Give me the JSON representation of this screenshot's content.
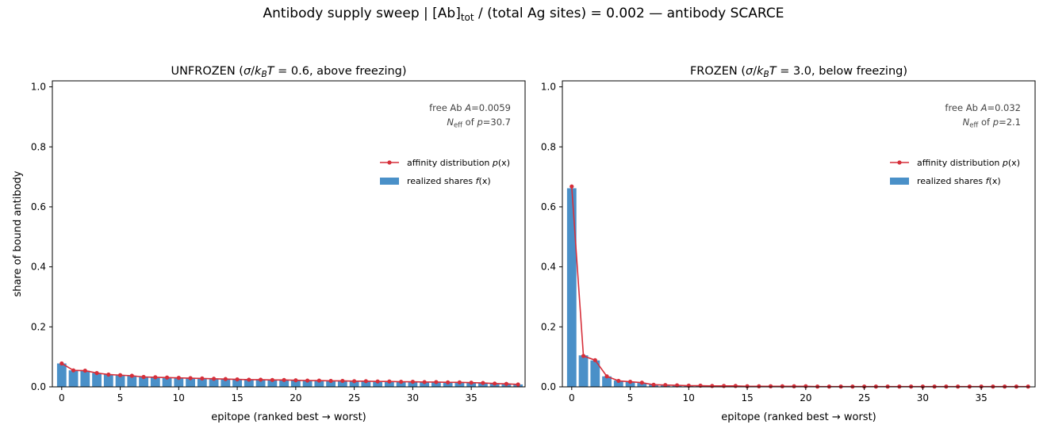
{
  "figure": {
    "suptitle_prefix": "Antibody supply sweep   |   [Ab]",
    "suptitle_sub": "tot",
    "suptitle_suffix": " / (total Ag sites) = 0.002   —   antibody SCARCE"
  },
  "colors": {
    "bar": "#4a90c8",
    "line": "#d62f3a"
  },
  "chart_data": [
    {
      "type": "bar",
      "title_prefix": "UNFROZEN  (",
      "title_math_sigma": "σ",
      "title_math_k": "k",
      "title_math_sub": "B",
      "title_math_T": "T",
      "title_suffix": " = 0.6, above freezing)",
      "xlabel": "epitope (ranked best → worst)",
      "ylabel": "share of bound antibody",
      "xlim": [
        -0.8,
        39.6
      ],
      "ylim": [
        0,
        1.02
      ],
      "xticks": [
        0,
        5,
        10,
        15,
        20,
        25,
        30,
        35
      ],
      "yticks": [
        "0.0",
        "0.2",
        "0.4",
        "0.6",
        "0.8",
        "1.0"
      ],
      "annotation_line1_prefix": "free Ab ",
      "annotation_line1_var": "A",
      "annotation_line1_value": "=0.0059",
      "annotation_line2_var": "N",
      "annotation_line2_sub": "eff",
      "annotation_line2_mid": " of ",
      "annotation_line2_pvar": "p",
      "annotation_line2_value": "=30.7",
      "legend": [
        {
          "kind": "line",
          "prefix": "affinity distribution ",
          "var": "p",
          "suffix": "(x)"
        },
        {
          "kind": "bar",
          "prefix": "realized shares ",
          "var": "f",
          "suffix": "(x)"
        }
      ],
      "series": [
        {
          "kind": "bar",
          "values": [
            0.078,
            0.055,
            0.054,
            0.046,
            0.041,
            0.038,
            0.036,
            0.033,
            0.032,
            0.031,
            0.03,
            0.029,
            0.028,
            0.027,
            0.026,
            0.025,
            0.024,
            0.024,
            0.023,
            0.023,
            0.022,
            0.021,
            0.021,
            0.02,
            0.02,
            0.019,
            0.019,
            0.018,
            0.018,
            0.017,
            0.017,
            0.016,
            0.016,
            0.015,
            0.015,
            0.014,
            0.013,
            0.011,
            0.01,
            0.008
          ]
        },
        {
          "kind": "line",
          "values": [
            0.078,
            0.055,
            0.054,
            0.046,
            0.041,
            0.039,
            0.037,
            0.033,
            0.032,
            0.031,
            0.03,
            0.029,
            0.028,
            0.027,
            0.026,
            0.025,
            0.024,
            0.024,
            0.023,
            0.023,
            0.022,
            0.021,
            0.021,
            0.02,
            0.02,
            0.019,
            0.019,
            0.018,
            0.018,
            0.017,
            0.017,
            0.016,
            0.016,
            0.015,
            0.015,
            0.014,
            0.013,
            0.011,
            0.01,
            0.008
          ]
        }
      ]
    },
    {
      "type": "bar",
      "title_prefix": "FROZEN  (",
      "title_math_sigma": "σ",
      "title_math_k": "k",
      "title_math_sub": "B",
      "title_math_T": "T",
      "title_suffix": " = 3.0, below freezing)",
      "xlabel": "epitope (ranked best → worst)",
      "ylabel": "",
      "xlim": [
        -0.8,
        39.6
      ],
      "ylim": [
        0,
        1.02
      ],
      "xticks": [
        0,
        5,
        10,
        15,
        20,
        25,
        30,
        35
      ],
      "yticks": [
        "0.0",
        "0.2",
        "0.4",
        "0.6",
        "0.8",
        "1.0"
      ],
      "annotation_line1_prefix": "free Ab ",
      "annotation_line1_var": "A",
      "annotation_line1_value": "=0.032",
      "annotation_line2_var": "N",
      "annotation_line2_sub": "eff",
      "annotation_line2_mid": " of ",
      "annotation_line2_pvar": "p",
      "annotation_line2_value": "=2.1",
      "legend": [
        {
          "kind": "line",
          "prefix": "affinity distribution ",
          "var": "p",
          "suffix": "(x)"
        },
        {
          "kind": "bar",
          "prefix": "realized shares ",
          "var": "f",
          "suffix": "(x)"
        }
      ],
      "series": [
        {
          "kind": "bar",
          "values": [
            0.662,
            0.105,
            0.088,
            0.035,
            0.021,
            0.017,
            0.013,
            0.008,
            0.006,
            0.005,
            0.004,
            0.004,
            0.003,
            0.003,
            0.003,
            0.002,
            0.002,
            0.002,
            0.002,
            0.002,
            0.002,
            0.001,
            0.001,
            0.001,
            0.001,
            0.001,
            0.001,
            0.001,
            0.001,
            0.001,
            0.001,
            0.001,
            0.001,
            0.001,
            0.001,
            0.001,
            0.001,
            0.001,
            0.001,
            0.001
          ]
        },
        {
          "kind": "line",
          "values": [
            0.668,
            0.103,
            0.089,
            0.035,
            0.02,
            0.017,
            0.014,
            0.007,
            0.006,
            0.005,
            0.004,
            0.004,
            0.003,
            0.003,
            0.003,
            0.002,
            0.002,
            0.002,
            0.002,
            0.002,
            0.002,
            0.001,
            0.001,
            0.001,
            0.001,
            0.001,
            0.001,
            0.001,
            0.001,
            0.001,
            0.001,
            0.001,
            0.001,
            0.001,
            0.001,
            0.001,
            0.001,
            0.001,
            0.001,
            0.001
          ]
        }
      ]
    }
  ]
}
